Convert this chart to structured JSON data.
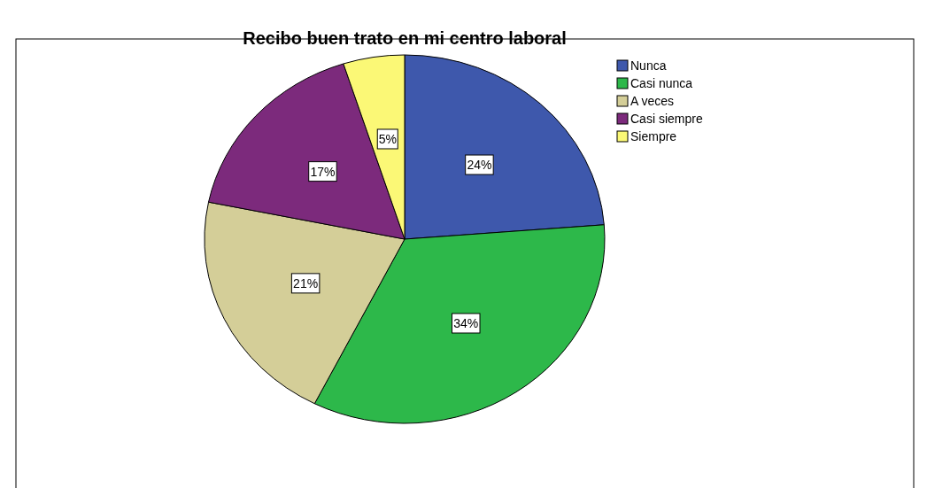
{
  "chart_data": {
    "type": "pie",
    "title": "Recibo buen trato en mi centro laboral",
    "categories": [
      "Nunca",
      "Casi nunca",
      "A veces",
      "Casi siempre",
      "Siempre"
    ],
    "values": [
      24,
      34,
      21,
      17,
      5
    ],
    "colors": [
      "#3e58ac",
      "#2db84a",
      "#d4ce98",
      "#7c2a7c",
      "#fbf876"
    ],
    "value_labels": [
      "24%",
      "34%",
      "21%",
      "17%",
      "5%"
    ],
    "legend": "top right"
  }
}
